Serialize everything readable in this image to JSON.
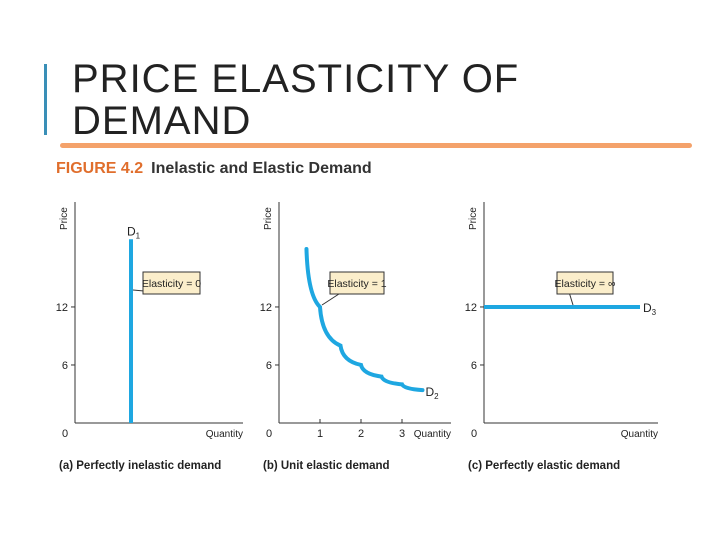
{
  "slide": {
    "title": "PRICE ELASTICITY OF DEMAND",
    "figure_number": "FIGURE 4.2",
    "figure_caption": "Inelastic and Elastic Demand",
    "accent_color": "#f4a26b",
    "curve_color": "#1ea7e1",
    "label_box_color": "#fbeecb"
  },
  "chart_data": [
    {
      "type": "line",
      "panel_label": "(a) Perfectly inelastic demand",
      "xlabel": "Quantity",
      "ylabel": "Price",
      "origin_label": "0",
      "y_ticks": [
        "12",
        "6"
      ],
      "x_ticks": [],
      "series": [
        {
          "name": "D1",
          "points": [
            [
              1,
              0
            ],
            [
              1,
              19
            ]
          ]
        }
      ],
      "annotation": "Elasticity = 0"
    },
    {
      "type": "line",
      "panel_label": "(b) Unit elastic demand",
      "xlabel": "Quantity",
      "ylabel": "Price",
      "origin_label": "0",
      "y_ticks": [
        "12",
        "6"
      ],
      "x_ticks": [
        "1",
        "2",
        "3"
      ],
      "series": [
        {
          "name": "D2",
          "points": [
            [
              0.67,
              18
            ],
            [
              1,
              12
            ],
            [
              1.5,
              8
            ],
            [
              2,
              6
            ],
            [
              2.5,
              4.8
            ],
            [
              3,
              4
            ],
            [
              3.5,
              3.4
            ]
          ]
        }
      ],
      "annotation": "Elasticity = 1"
    },
    {
      "type": "line",
      "panel_label": "(c) Perfectly elastic demand",
      "xlabel": "Quantity",
      "ylabel": "Price",
      "origin_label": "0",
      "y_ticks": [
        "12",
        "6"
      ],
      "x_ticks": [],
      "series": [
        {
          "name": "D3",
          "points": [
            [
              0,
              12
            ],
            [
              4,
              12
            ]
          ]
        }
      ],
      "annotation": "Elasticity = ∞"
    }
  ]
}
